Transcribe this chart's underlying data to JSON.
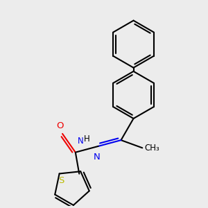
{
  "bg_color": "#ececec",
  "bond_color": "#000000",
  "N_color": "#0000ee",
  "O_color": "#ee0000",
  "S_color": "#bbbb00",
  "lw": 1.5,
  "dbo": 0.055,
  "fs": 9.5,
  "figsize": [
    3.0,
    3.0
  ],
  "dpi": 100,
  "xlim": [
    -0.5,
    3.5
  ],
  "ylim": [
    -0.3,
    4.2
  ]
}
